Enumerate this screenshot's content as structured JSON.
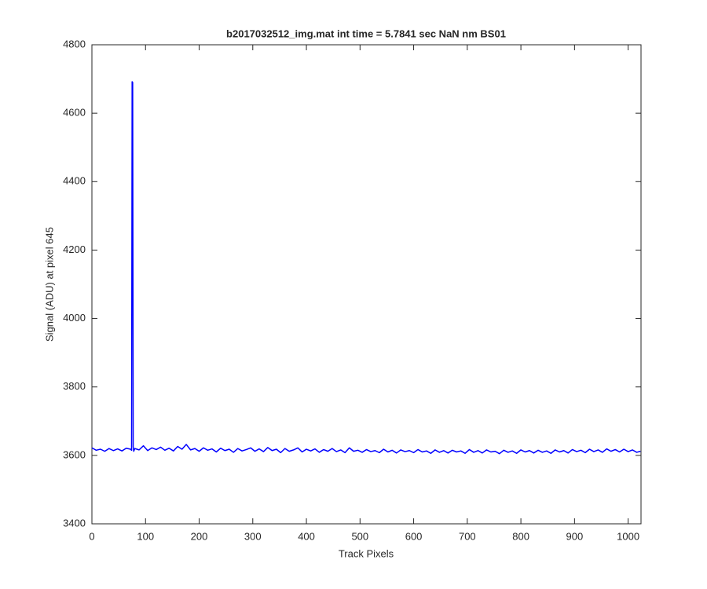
{
  "chart_data": {
    "type": "line",
    "title": "b2017032512_img.mat int time = 5.7841 sec  NaN nm BS01",
    "x_label": "Track Pixels",
    "y_label": "Signal (ADU) at pixel 645",
    "xlim": [
      0,
      1024
    ],
    "ylim": [
      3400,
      4800
    ],
    "xticks": [
      0,
      100,
      200,
      300,
      400,
      500,
      600,
      700,
      800,
      900,
      1000
    ],
    "yticks": [
      3400,
      3600,
      3800,
      4000,
      4200,
      4400,
      4600,
      4800
    ],
    "grid": false,
    "series": [
      {
        "color": "#0000ff",
        "x": [
          0,
          8,
          16,
          24,
          32,
          40,
          48,
          56,
          64,
          72,
          74,
          75,
          76,
          77,
          78,
          80,
          88,
          96,
          104,
          112,
          120,
          128,
          136,
          144,
          152,
          160,
          168,
          176,
          184,
          192,
          200,
          208,
          216,
          224,
          232,
          240,
          248,
          256,
          264,
          272,
          280,
          288,
          296,
          304,
          312,
          320,
          328,
          336,
          344,
          352,
          360,
          368,
          376,
          384,
          392,
          400,
          408,
          416,
          424,
          432,
          440,
          448,
          456,
          464,
          472,
          480,
          488,
          496,
          504,
          512,
          520,
          528,
          536,
          544,
          552,
          560,
          568,
          576,
          584,
          592,
          600,
          608,
          616,
          624,
          632,
          640,
          648,
          656,
          664,
          672,
          680,
          688,
          696,
          704,
          712,
          720,
          728,
          736,
          744,
          752,
          760,
          768,
          776,
          784,
          792,
          800,
          808,
          816,
          824,
          832,
          840,
          848,
          856,
          864,
          872,
          880,
          888,
          896,
          904,
          912,
          920,
          928,
          936,
          944,
          952,
          960,
          968,
          976,
          984,
          992,
          1000,
          1008,
          1016,
          1023
        ],
        "values": [
          3622,
          3615,
          3618,
          3612,
          3620,
          3614,
          3619,
          3613,
          3621,
          3618,
          3615,
          4692,
          4690,
          3625,
          3612,
          3620,
          3616,
          3628,
          3614,
          3622,
          3617,
          3624,
          3615,
          3621,
          3613,
          3626,
          3618,
          3632,
          3616,
          3620,
          3612,
          3622,
          3615,
          3619,
          3610,
          3621,
          3614,
          3618,
          3609,
          3620,
          3613,
          3617,
          3622,
          3612,
          3619,
          3611,
          3623,
          3614,
          3618,
          3608,
          3620,
          3612,
          3616,
          3622,
          3610,
          3618,
          3613,
          3619,
          3609,
          3617,
          3612,
          3620,
          3611,
          3616,
          3608,
          3622,
          3612,
          3615,
          3609,
          3617,
          3611,
          3614,
          3608,
          3618,
          3610,
          3615,
          3607,
          3616,
          3611,
          3614,
          3608,
          3617,
          3610,
          3613,
          3606,
          3616,
          3609,
          3614,
          3607,
          3615,
          3610,
          3613,
          3606,
          3617,
          3609,
          3614,
          3607,
          3616,
          3610,
          3612,
          3605,
          3615,
          3609,
          3613,
          3606,
          3616,
          3610,
          3614,
          3607,
          3615,
          3609,
          3613,
          3606,
          3616,
          3610,
          3614,
          3607,
          3617,
          3611,
          3615,
          3608,
          3618,
          3611,
          3616,
          3609,
          3619,
          3612,
          3617,
          3610,
          3618,
          3611,
          3616,
          3609,
          3612
        ]
      }
    ]
  }
}
